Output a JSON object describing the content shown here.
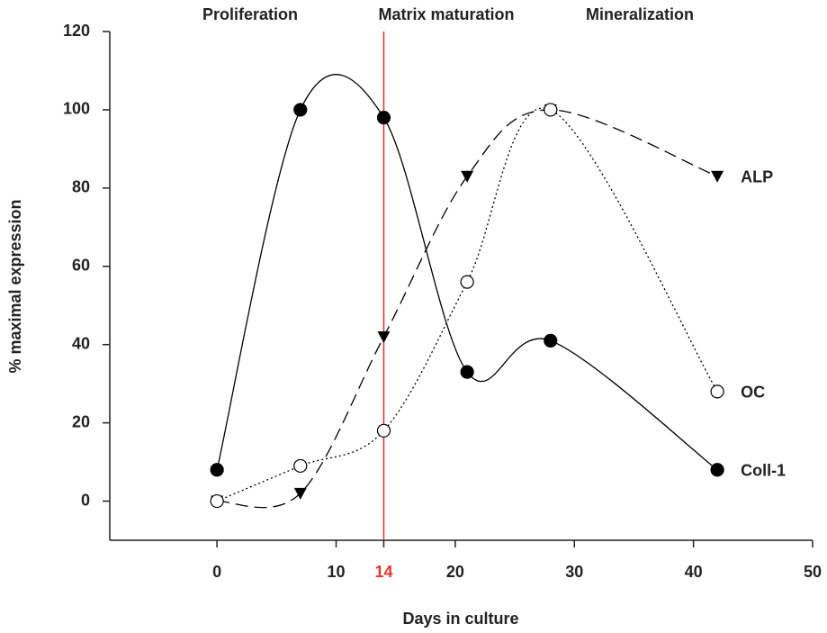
{
  "chart_data": {
    "type": "line",
    "xlabel": "Days in culture",
    "ylabel": "% maximal expression",
    "annotations": [
      "Proliferation",
      "Matrix maturation",
      "Mineralization"
    ],
    "highlight_x": 14,
    "highlight_color": "#e8332a",
    "x": [
      0,
      7,
      14,
      21,
      28,
      42
    ],
    "series": [
      {
        "name": "ALP",
        "color": "#000000",
        "line_style": "dashed",
        "marker": "triangle-down",
        "values": [
          0,
          2,
          42,
          83,
          100,
          83
        ]
      },
      {
        "name": "OC",
        "color": "#000000",
        "line_style": "dotted",
        "marker": "open-circle",
        "values": [
          0,
          9,
          18,
          56,
          100,
          28
        ]
      },
      {
        "name": "Coll-1",
        "color": "#000000",
        "line_style": "solid",
        "marker": "filled-circle",
        "values": [
          8,
          100,
          98,
          33,
          41,
          8
        ]
      }
    ],
    "xlim": [
      -9,
      50
    ],
    "xticks": [
      0,
      10,
      14,
      20,
      30,
      40,
      50
    ],
    "ylim": [
      -10,
      120
    ],
    "yticks": [
      0,
      20,
      40,
      60,
      80,
      100,
      120
    ],
    "grid": false
  }
}
